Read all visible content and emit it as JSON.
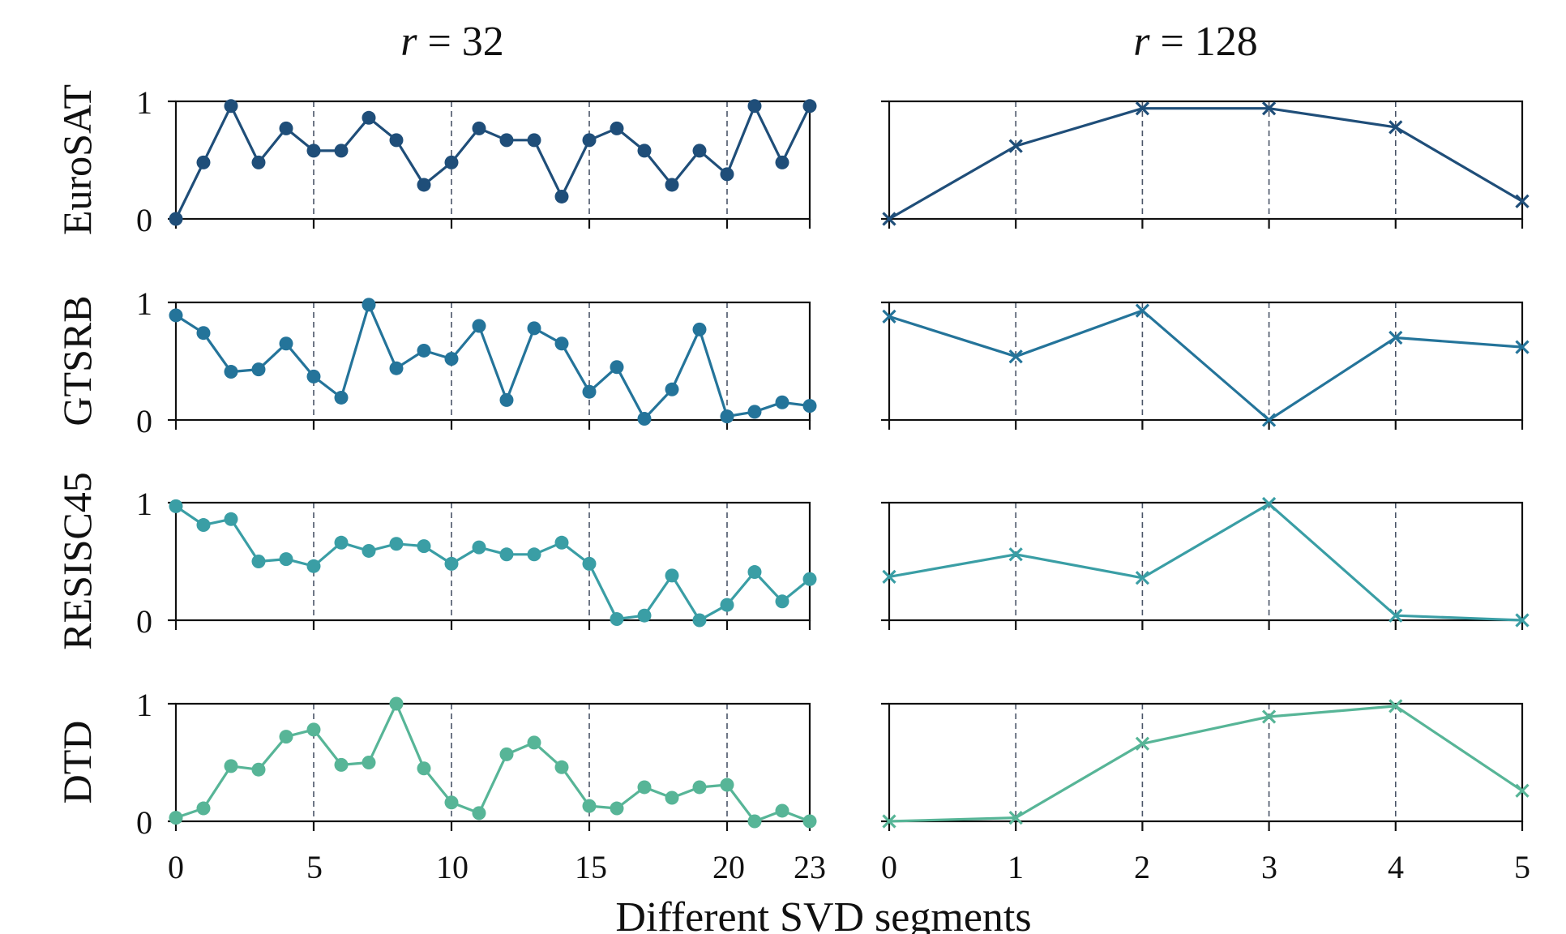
{
  "chart_data": {
    "type": "line",
    "xlabel": "Different SVD segments",
    "ylim": [
      0,
      1
    ],
    "yticks": [
      0,
      1
    ],
    "columns": [
      {
        "title_var": "r",
        "title_eq": " = ",
        "title_val": "32",
        "marker": "circle",
        "xlim": [
          0,
          23
        ],
        "xticks": [
          0,
          5,
          10,
          15,
          20,
          23
        ],
        "gridlines": [
          5,
          10,
          15,
          20
        ],
        "x": [
          0,
          1,
          2,
          3,
          4,
          5,
          6,
          7,
          8,
          9,
          10,
          11,
          12,
          13,
          14,
          15,
          16,
          17,
          18,
          19,
          20,
          21,
          22,
          23
        ]
      },
      {
        "title_var": "r",
        "title_eq": " = ",
        "title_val": "128",
        "marker": "x",
        "xlim": [
          0,
          5
        ],
        "xticks": [
          0,
          1,
          2,
          3,
          4,
          5
        ],
        "gridlines": [
          1,
          2,
          3,
          4
        ],
        "x": [
          0,
          1,
          2,
          3,
          4,
          5
        ]
      }
    ],
    "rows": [
      {
        "name": "EuroSAT",
        "color": "#1f4e79",
        "r32": [
          0.0,
          0.48,
          0.96,
          0.48,
          0.77,
          0.58,
          0.58,
          0.86,
          0.67,
          0.29,
          0.48,
          0.77,
          0.67,
          0.67,
          0.19,
          0.67,
          0.77,
          0.58,
          0.29,
          0.58,
          0.38,
          0.96,
          0.48,
          0.96
        ],
        "r128": [
          0.0,
          0.62,
          0.94,
          0.94,
          0.78,
          0.15
        ]
      },
      {
        "name": "GTSRB",
        "color": "#24749a",
        "r32": [
          0.89,
          0.74,
          0.41,
          0.43,
          0.65,
          0.37,
          0.19,
          0.98,
          0.44,
          0.59,
          0.52,
          0.8,
          0.17,
          0.78,
          0.65,
          0.24,
          0.45,
          0.01,
          0.26,
          0.77,
          0.03,
          0.07,
          0.15,
          0.12
        ],
        "r128": [
          0.88,
          0.54,
          0.93,
          0.0,
          0.7,
          0.62
        ]
      },
      {
        "name": "RESISC45",
        "color": "#3a9ea5",
        "r32": [
          0.97,
          0.81,
          0.86,
          0.5,
          0.52,
          0.46,
          0.66,
          0.59,
          0.65,
          0.63,
          0.48,
          0.62,
          0.56,
          0.56,
          0.66,
          0.48,
          0.01,
          0.04,
          0.38,
          0.0,
          0.13,
          0.41,
          0.16,
          0.35
        ],
        "r128": [
          0.37,
          0.56,
          0.36,
          0.99,
          0.04,
          0.0
        ]
      },
      {
        "name": "DTD",
        "color": "#57b597",
        "r32": [
          0.03,
          0.11,
          0.47,
          0.44,
          0.72,
          0.78,
          0.48,
          0.5,
          1.0,
          0.45,
          0.16,
          0.07,
          0.57,
          0.67,
          0.46,
          0.13,
          0.11,
          0.29,
          0.2,
          0.29,
          0.31,
          0.0,
          0.09,
          0.0
        ],
        "r128": [
          0.0,
          0.03,
          0.66,
          0.89,
          0.98,
          0.26
        ]
      }
    ]
  }
}
